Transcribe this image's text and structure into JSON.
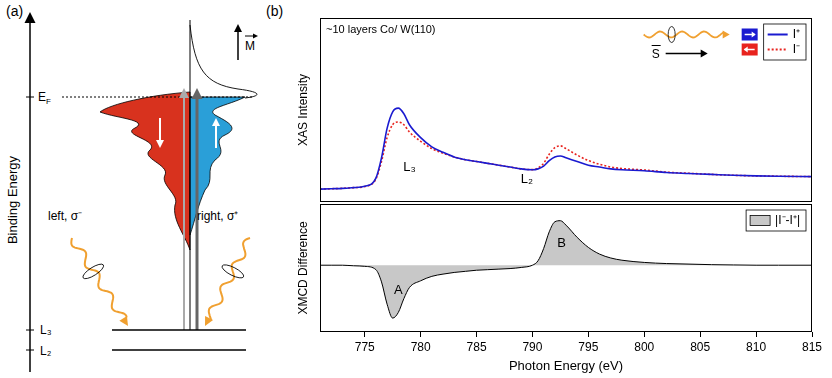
{
  "diagram": {
    "panel_label": "(a)",
    "axis_label": "Binding Energy",
    "fermi_level": {
      "base": "E",
      "sub": "F"
    },
    "magnetization": "M",
    "left_light": "left, σ⁻",
    "right_light": "right, σ⁺",
    "core_levels": [
      "L₃",
      "L₂"
    ]
  },
  "panel_b_label": "(b)",
  "chart_data": [
    {
      "type": "line",
      "y_label": "XAS Intensity",
      "inset_text": "~10 layers Co/ W(110)",
      "legend_symbol_label": "S",
      "legend": "upper right",
      "grid": false,
      "tick_labels": false,
      "xlim": [
        771,
        815
      ],
      "ylim": [
        0,
        10
      ],
      "x": [
        771,
        772,
        773,
        774,
        775,
        776,
        776.5,
        777,
        777.5,
        778,
        778.5,
        779,
        780,
        781,
        782,
        783,
        784,
        785,
        786,
        787,
        788,
        789,
        790,
        790.5,
        791,
        791.5,
        792,
        792.5,
        793,
        794,
        795,
        796,
        797,
        798,
        800,
        802,
        804,
        806,
        808,
        810,
        812,
        815
      ],
      "series": [
        {
          "name": "I⁺",
          "color": "#1a1ad0",
          "line_style": "solid",
          "values": [
            0.7,
            0.72,
            0.74,
            0.78,
            0.85,
            1.3,
            2.4,
            4.0,
            4.9,
            5.1,
            4.8,
            4.2,
            3.5,
            3.0,
            2.7,
            2.45,
            2.3,
            2.2,
            2.1,
            2.0,
            1.9,
            1.8,
            1.75,
            1.8,
            1.95,
            2.25,
            2.45,
            2.5,
            2.4,
            2.2,
            2.0,
            1.9,
            1.8,
            1.75,
            1.7,
            1.6,
            1.55,
            1.5,
            1.45,
            1.42,
            1.4,
            1.38
          ]
        },
        {
          "name": "I⁻",
          "color": "#e8231e",
          "line_style": "dotted",
          "values": [
            0.7,
            0.72,
            0.74,
            0.78,
            0.84,
            1.25,
            2.2,
            3.5,
            4.2,
            4.35,
            4.2,
            3.8,
            3.3,
            2.9,
            2.65,
            2.45,
            2.3,
            2.2,
            2.1,
            2.0,
            1.9,
            1.8,
            1.76,
            1.85,
            2.1,
            2.6,
            2.95,
            3.05,
            2.9,
            2.55,
            2.25,
            2.05,
            1.9,
            1.82,
            1.74,
            1.62,
            1.56,
            1.5,
            1.45,
            1.42,
            1.4,
            1.38
          ]
        }
      ],
      "annotations": [
        {
          "text": "L₃",
          "x": 779,
          "y": 1.9
        },
        {
          "text": "L₂",
          "x": 789.5,
          "y": 1.2
        }
      ]
    },
    {
      "type": "area",
      "y_label": "XMCD Difference",
      "x_label": "Photon Energy (eV)",
      "legend": "upper right",
      "grid": false,
      "tick_labels": "x",
      "xlim": [
        771,
        815
      ],
      "ylim": [
        -1.2,
        1.1
      ],
      "xticks": [
        775,
        780,
        785,
        790,
        795,
        800,
        805,
        810,
        815
      ],
      "x": [
        771,
        772,
        773,
        774,
        775,
        776,
        776.5,
        777,
        777.5,
        778,
        778.5,
        779,
        780,
        781,
        782,
        783,
        784,
        785,
        786,
        787,
        788,
        789,
        790,
        790.5,
        791,
        791.5,
        792,
        792.5,
        793,
        794,
        795,
        796,
        797,
        798,
        800,
        802,
        804,
        806,
        808,
        810,
        812,
        815
      ],
      "series": [
        {
          "name": "|I⁻-I⁺|",
          "color": "#c8c8c8",
          "values": [
            0,
            0,
            0,
            -0.01,
            -0.02,
            -0.08,
            -0.3,
            -0.7,
            -0.95,
            -0.85,
            -0.6,
            -0.4,
            -0.28,
            -0.2,
            -0.16,
            -0.13,
            -0.11,
            -0.09,
            -0.08,
            -0.07,
            -0.06,
            -0.04,
            0,
            0.08,
            0.3,
            0.6,
            0.78,
            0.8,
            0.72,
            0.5,
            0.32,
            0.2,
            0.13,
            0.09,
            0.05,
            0.03,
            0.02,
            0.01,
            0.005,
            0,
            0,
            0
          ]
        }
      ],
      "annotations": [
        {
          "text": "A",
          "x": 778,
          "y": -0.45
        },
        {
          "text": "B",
          "x": 792.6,
          "y": 0.4
        }
      ]
    }
  ]
}
